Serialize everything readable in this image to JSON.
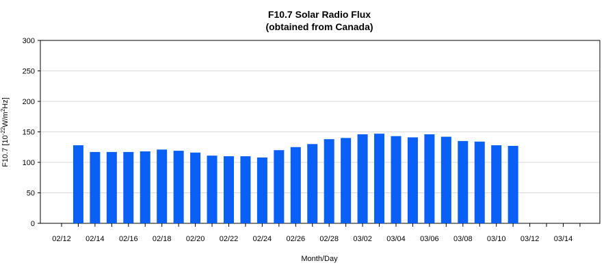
{
  "chart_data": {
    "type": "bar",
    "title": "F10.7 Solar Radio Flux",
    "subtitle": "(obtained from Canada)",
    "xlabel": "Month/Day",
    "ylabel": {
      "prefix": "F10.7 [10",
      "exp1": "-22",
      "mid": "W/m",
      "exp2": "2",
      "suffix": "Hz]"
    },
    "ylim": [
      0,
      300
    ],
    "yticks": [
      0,
      50,
      100,
      150,
      200,
      250,
      300
    ],
    "grid": true,
    "bar_color": "#0a5ff5",
    "start_date": "02/12",
    "days": [
      "02/12",
      "02/13",
      "02/14",
      "02/15",
      "02/16",
      "02/17",
      "02/18",
      "02/19",
      "02/20",
      "02/21",
      "02/22",
      "02/23",
      "02/24",
      "02/25",
      "02/26",
      "02/27",
      "02/28",
      "03/01",
      "03/02",
      "03/03",
      "03/04",
      "03/05",
      "03/06",
      "03/07",
      "03/08",
      "03/09",
      "03/10",
      "03/11",
      "03/12",
      "03/13",
      "03/14",
      "03/15"
    ],
    "xtick_labels": [
      "02/12",
      "02/14",
      "02/16",
      "02/18",
      "02/20",
      "02/22",
      "02/24",
      "02/26",
      "02/28",
      "03/02",
      "03/04",
      "03/06",
      "03/08",
      "03/10",
      "03/12",
      "03/14"
    ],
    "categories": [
      "02/13",
      "02/14",
      "02/15",
      "02/16",
      "02/17",
      "02/18",
      "02/19",
      "02/20",
      "02/21",
      "02/22",
      "02/23",
      "02/24",
      "02/25",
      "02/26",
      "02/27",
      "02/28",
      "03/01",
      "03/02",
      "03/03",
      "03/04",
      "03/05",
      "03/06",
      "03/07",
      "03/08",
      "03/09",
      "03/10",
      "03/11"
    ],
    "values": [
      128,
      117,
      117,
      117,
      118,
      121,
      119,
      116,
      111,
      110,
      110,
      108,
      120,
      125,
      130,
      138,
      140,
      146,
      147,
      143,
      141,
      146,
      142,
      135,
      134,
      128,
      127
    ]
  }
}
